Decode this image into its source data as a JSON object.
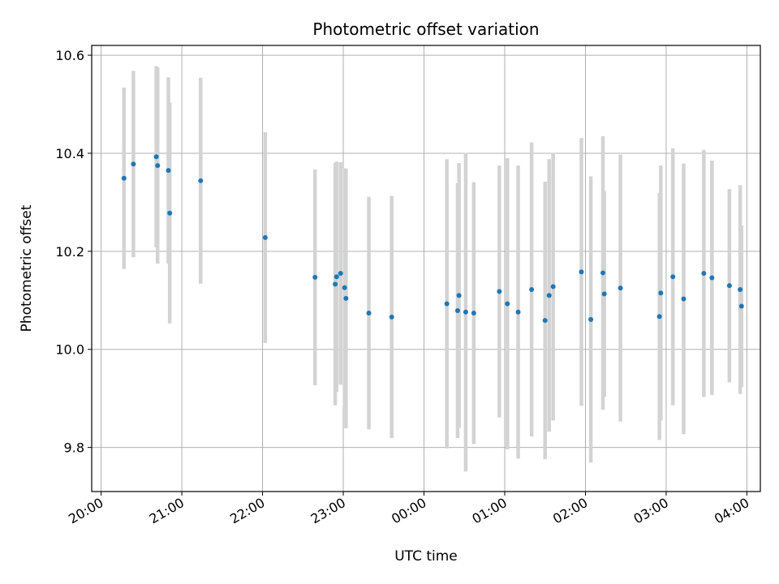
{
  "chart_data": {
    "type": "scatter",
    "title": "Photometric offset variation",
    "xlabel": "UTC time",
    "ylabel": "Photometric offset",
    "grid": true,
    "xlim": [
      "2000-01-01T19:53",
      "2000-01-02T04:10"
    ],
    "ylim": [
      9.71,
      10.62
    ],
    "x_tick_labels": [
      "20:00",
      "21:00",
      "22:00",
      "23:00",
      "00:00",
      "01:00",
      "02:00",
      "03:00",
      "04:00"
    ],
    "y_tick_labels": [
      "9.8",
      "10.0",
      "10.2",
      "10.4",
      "10.6"
    ],
    "point_color": "#1f77b4",
    "errorbar_color": "#d3d3d3",
    "series": [
      {
        "x": [
          "2000-01-01T20:17",
          "2000-01-01T20:24",
          "2000-01-01T20:41",
          "2000-01-01T20:42",
          "2000-01-01T20:50",
          "2000-01-01T20:51",
          "2000-01-01T21:14",
          "2000-01-01T22:02",
          "2000-01-01T22:39",
          "2000-01-01T22:54",
          "2000-01-01T22:55",
          "2000-01-01T22:58",
          "2000-01-01T23:01",
          "2000-01-01T23:02",
          "2000-01-01T23:19",
          "2000-01-01T23:36",
          "2000-01-02T00:17",
          "2000-01-02T00:25",
          "2000-01-02T00:26",
          "2000-01-02T00:31",
          "2000-01-02T00:37",
          "2000-01-02T00:56",
          "2000-01-02T01:02",
          "2000-01-02T01:10",
          "2000-01-02T01:20",
          "2000-01-02T01:30",
          "2000-01-02T01:33",
          "2000-01-02T01:36",
          "2000-01-02T01:57",
          "2000-01-02T02:04",
          "2000-01-02T02:13",
          "2000-01-02T02:14",
          "2000-01-02T02:26",
          "2000-01-02T02:55",
          "2000-01-02T02:56",
          "2000-01-02T03:05",
          "2000-01-02T03:13",
          "2000-01-02T03:28",
          "2000-01-02T03:34",
          "2000-01-02T03:47",
          "2000-01-02T03:55",
          "2000-01-02T03:56"
        ],
        "y": [
          10.349,
          10.378,
          10.393,
          10.375,
          10.365,
          10.278,
          10.344,
          10.228,
          10.147,
          10.133,
          10.148,
          10.155,
          10.126,
          10.104,
          10.074,
          10.066,
          10.093,
          10.079,
          10.11,
          10.076,
          10.074,
          10.118,
          10.093,
          10.076,
          10.122,
          10.059,
          10.11,
          10.128,
          10.158,
          10.061,
          10.156,
          10.113,
          10.125,
          10.067,
          10.115,
          10.148,
          10.103,
          10.155,
          10.146,
          10.13,
          10.122,
          10.088
        ],
        "error": [
          0.185,
          0.19,
          0.185,
          0.2,
          0.19,
          0.225,
          0.21,
          0.215,
          0.22,
          0.247,
          0.235,
          0.227,
          0.243,
          0.265,
          0.237,
          0.247,
          0.295,
          0.26,
          0.27,
          0.325,
          0.267,
          0.257,
          0.297,
          0.299,
          0.3,
          0.283,
          0.278,
          0.273,
          0.273,
          0.292,
          0.279,
          0.21,
          0.272,
          0.252,
          0.26,
          0.262,
          0.276,
          0.252,
          0.239,
          0.197,
          0.213,
          0.165
        ]
      }
    ]
  }
}
